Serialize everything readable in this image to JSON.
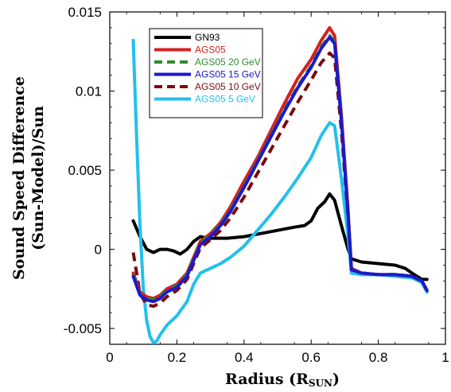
{
  "chart_data": {
    "type": "line",
    "title": "",
    "xlabel": "Radius (R",
    "xlabel_sub": "SUN",
    "xlabel_close": ")",
    "ylabel_line1": "Sound Speed Difference",
    "ylabel_line2": "(Sun-Model)/Sun",
    "xlim": [
      0,
      1
    ],
    "ylim": [
      -0.006,
      0.015
    ],
    "xticks": [
      {
        "value": 0,
        "label": "0"
      },
      {
        "value": 0.2,
        "label": "0.2"
      },
      {
        "value": 0.4,
        "label": "0.4"
      },
      {
        "value": 0.6,
        "label": "0.6"
      },
      {
        "value": 0.8,
        "label": "0.8"
      },
      {
        "value": 1,
        "label": "1"
      }
    ],
    "yticks": [
      {
        "value": -0.005,
        "label": "-0.005"
      },
      {
        "value": 0,
        "label": "0"
      },
      {
        "value": 0.005,
        "label": "0.005"
      },
      {
        "value": 0.01,
        "label": "0.01"
      },
      {
        "value": 0.015,
        "label": "0.015"
      }
    ],
    "grid": false,
    "legend_position": "top-left",
    "series": [
      {
        "name": "GN93",
        "color": "#000000",
        "dash": false,
        "points": [
          [
            0.07,
            0.0018
          ],
          [
            0.09,
            0.0008
          ],
          [
            0.11,
            0.0
          ],
          [
            0.13,
            -0.0002
          ],
          [
            0.15,
            0.0
          ],
          [
            0.17,
            0.0
          ],
          [
            0.19,
            -0.0001
          ],
          [
            0.21,
            -0.0003
          ],
          [
            0.23,
            0.0
          ],
          [
            0.25,
            0.0005
          ],
          [
            0.27,
            0.0008
          ],
          [
            0.29,
            0.0007
          ],
          [
            0.31,
            0.0007
          ],
          [
            0.35,
            0.0007
          ],
          [
            0.4,
            0.0008
          ],
          [
            0.45,
            0.001
          ],
          [
            0.5,
            0.0012
          ],
          [
            0.55,
            0.0014
          ],
          [
            0.58,
            0.0015
          ],
          [
            0.6,
            0.0018
          ],
          [
            0.62,
            0.0026
          ],
          [
            0.64,
            0.003
          ],
          [
            0.655,
            0.0035
          ],
          [
            0.67,
            0.0031
          ],
          [
            0.69,
            0.0015
          ],
          [
            0.71,
            0.0
          ],
          [
            0.72,
            -0.0006
          ],
          [
            0.75,
            -0.0008
          ],
          [
            0.8,
            -0.0009
          ],
          [
            0.85,
            -0.001
          ],
          [
            0.88,
            -0.0012
          ],
          [
            0.9,
            -0.0015
          ],
          [
            0.93,
            -0.0019
          ],
          [
            0.945,
            -0.0019
          ]
        ]
      },
      {
        "name": "AGS05",
        "color": "#d42020",
        "dash": false,
        "points": [
          [
            0.07,
            -0.0015
          ],
          [
            0.09,
            -0.0027
          ],
          [
            0.11,
            -0.003
          ],
          [
            0.13,
            -0.0031
          ],
          [
            0.15,
            -0.0029
          ],
          [
            0.17,
            -0.0025
          ],
          [
            0.2,
            -0.0022
          ],
          [
            0.23,
            -0.0015
          ],
          [
            0.25,
            -0.0005
          ],
          [
            0.27,
            0.0005
          ],
          [
            0.3,
            0.001
          ],
          [
            0.33,
            0.0017
          ],
          [
            0.36,
            0.0027
          ],
          [
            0.4,
            0.0043
          ],
          [
            0.44,
            0.0058
          ],
          [
            0.48,
            0.0075
          ],
          [
            0.52,
            0.0092
          ],
          [
            0.56,
            0.0108
          ],
          [
            0.6,
            0.012
          ],
          [
            0.63,
            0.0132
          ],
          [
            0.655,
            0.014
          ],
          [
            0.67,
            0.0135
          ],
          [
            0.69,
            0.0085
          ],
          [
            0.71,
            0.0025
          ],
          [
            0.72,
            -0.0012
          ],
          [
            0.75,
            -0.0015
          ],
          [
            0.8,
            -0.0016
          ],
          [
            0.85,
            -0.0016
          ],
          [
            0.9,
            -0.0017
          ],
          [
            0.93,
            -0.002
          ],
          [
            0.945,
            -0.0026
          ]
        ]
      },
      {
        "name": "AGS05 20 GeV",
        "color": "#2e8b2e",
        "dash": true,
        "points": [
          [
            0.07,
            -0.0016
          ],
          [
            0.09,
            -0.0028
          ],
          [
            0.11,
            -0.0031
          ],
          [
            0.13,
            -0.0032
          ],
          [
            0.15,
            -0.003
          ],
          [
            0.17,
            -0.0026
          ],
          [
            0.2,
            -0.0023
          ],
          [
            0.23,
            -0.0016
          ],
          [
            0.25,
            -0.0006
          ],
          [
            0.27,
            0.0004
          ],
          [
            0.3,
            0.0009
          ],
          [
            0.33,
            0.0016
          ],
          [
            0.36,
            0.0025
          ],
          [
            0.4,
            0.004
          ],
          [
            0.44,
            0.0056
          ],
          [
            0.48,
            0.0072
          ],
          [
            0.52,
            0.0088
          ],
          [
            0.56,
            0.0103
          ],
          [
            0.6,
            0.0116
          ],
          [
            0.63,
            0.0128
          ],
          [
            0.655,
            0.0135
          ],
          [
            0.67,
            0.0131
          ],
          [
            0.69,
            0.0082
          ],
          [
            0.71,
            0.0023
          ],
          [
            0.72,
            -0.0013
          ],
          [
            0.75,
            -0.0015
          ],
          [
            0.8,
            -0.0016
          ],
          [
            0.85,
            -0.0016
          ],
          [
            0.9,
            -0.0017
          ],
          [
            0.93,
            -0.002
          ],
          [
            0.945,
            -0.0026
          ]
        ]
      },
      {
        "name": "AGS05 15 GeV",
        "color": "#1a1acc",
        "dash": false,
        "points": [
          [
            0.07,
            -0.0017
          ],
          [
            0.09,
            -0.0029
          ],
          [
            0.11,
            -0.0032
          ],
          [
            0.13,
            -0.0033
          ],
          [
            0.15,
            -0.0031
          ],
          [
            0.17,
            -0.0027
          ],
          [
            0.2,
            -0.0024
          ],
          [
            0.23,
            -0.0017
          ],
          [
            0.25,
            -0.0007
          ],
          [
            0.27,
            0.0003
          ],
          [
            0.3,
            0.0008
          ],
          [
            0.33,
            0.0015
          ],
          [
            0.36,
            0.0024
          ],
          [
            0.4,
            0.0039
          ],
          [
            0.44,
            0.0055
          ],
          [
            0.48,
            0.0071
          ],
          [
            0.52,
            0.0087
          ],
          [
            0.56,
            0.0102
          ],
          [
            0.6,
            0.0115
          ],
          [
            0.63,
            0.0127
          ],
          [
            0.655,
            0.0134
          ],
          [
            0.67,
            0.013
          ],
          [
            0.69,
            0.0081
          ],
          [
            0.71,
            0.0022
          ],
          [
            0.72,
            -0.0013
          ],
          [
            0.75,
            -0.0015
          ],
          [
            0.8,
            -0.0016
          ],
          [
            0.85,
            -0.0016
          ],
          [
            0.9,
            -0.0017
          ],
          [
            0.93,
            -0.002
          ],
          [
            0.945,
            -0.0026
          ]
        ]
      },
      {
        "name": "AGS05 10 GeV",
        "color": "#7a0a0a",
        "dash": true,
        "points": [
          [
            0.07,
            -0.0002
          ],
          [
            0.09,
            -0.0028
          ],
          [
            0.11,
            -0.0035
          ],
          [
            0.13,
            -0.0036
          ],
          [
            0.15,
            -0.0034
          ],
          [
            0.17,
            -0.003
          ],
          [
            0.2,
            -0.0026
          ],
          [
            0.23,
            -0.0019
          ],
          [
            0.25,
            -0.0009
          ],
          [
            0.27,
            0.0001
          ],
          [
            0.3,
            0.0006
          ],
          [
            0.33,
            0.0012
          ],
          [
            0.36,
            0.002
          ],
          [
            0.4,
            0.0033
          ],
          [
            0.44,
            0.0048
          ],
          [
            0.48,
            0.0063
          ],
          [
            0.52,
            0.0078
          ],
          [
            0.56,
            0.0093
          ],
          [
            0.6,
            0.0107
          ],
          [
            0.63,
            0.0118
          ],
          [
            0.655,
            0.0124
          ],
          [
            0.67,
            0.0121
          ],
          [
            0.69,
            0.0075
          ],
          [
            0.71,
            0.002
          ],
          [
            0.72,
            -0.0013
          ],
          [
            0.75,
            -0.0015
          ],
          [
            0.8,
            -0.0016
          ],
          [
            0.85,
            -0.0016
          ],
          [
            0.9,
            -0.0017
          ],
          [
            0.93,
            -0.002
          ],
          [
            0.945,
            -0.0026
          ]
        ]
      },
      {
        "name": "AGS05 5 GeV",
        "color": "#22c0ee",
        "dash": false,
        "points": [
          [
            0.07,
            0.0132
          ],
          [
            0.08,
            0.007
          ],
          [
            0.09,
            0.0015
          ],
          [
            0.1,
            -0.0025
          ],
          [
            0.11,
            -0.0045
          ],
          [
            0.12,
            -0.0055
          ],
          [
            0.13,
            -0.0059
          ],
          [
            0.14,
            -0.0058
          ],
          [
            0.15,
            -0.0054
          ],
          [
            0.17,
            -0.0048
          ],
          [
            0.2,
            -0.0042
          ],
          [
            0.23,
            -0.0033
          ],
          [
            0.25,
            -0.0022
          ],
          [
            0.27,
            -0.0015
          ],
          [
            0.3,
            -0.0012
          ],
          [
            0.33,
            -0.0009
          ],
          [
            0.36,
            -0.0005
          ],
          [
            0.4,
            0.0002
          ],
          [
            0.44,
            0.0012
          ],
          [
            0.48,
            0.0022
          ],
          [
            0.52,
            0.0033
          ],
          [
            0.56,
            0.0045
          ],
          [
            0.6,
            0.0058
          ],
          [
            0.63,
            0.0072
          ],
          [
            0.655,
            0.008
          ],
          [
            0.67,
            0.0078
          ],
          [
            0.69,
            0.0045
          ],
          [
            0.71,
            0.0008
          ],
          [
            0.72,
            -0.0015
          ],
          [
            0.75,
            -0.0016
          ],
          [
            0.8,
            -0.0016
          ],
          [
            0.85,
            -0.0017
          ],
          [
            0.9,
            -0.0018
          ],
          [
            0.93,
            -0.0021
          ],
          [
            0.945,
            -0.0027
          ]
        ]
      }
    ]
  }
}
